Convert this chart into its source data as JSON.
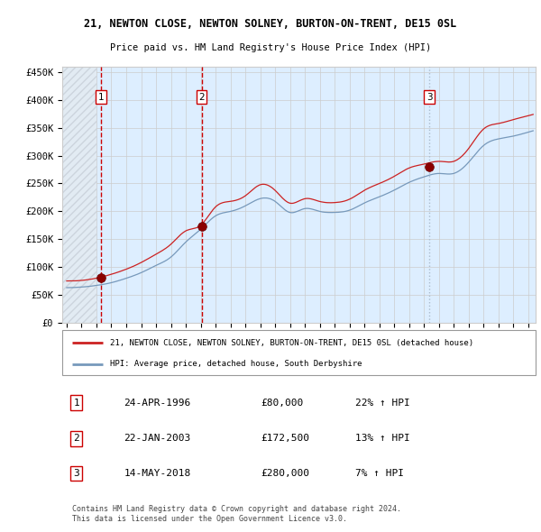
{
  "title_line1": "21, NEWTON CLOSE, NEWTON SOLNEY, BURTON-ON-TRENT, DE15 0SL",
  "title_line2": "Price paid vs. HM Land Registry's House Price Index (HPI)",
  "ylim": [
    0,
    460000
  ],
  "yticks": [
    0,
    50000,
    100000,
    150000,
    200000,
    250000,
    300000,
    350000,
    400000,
    450000
  ],
  "ytick_labels": [
    "£0",
    "£50K",
    "£100K",
    "£150K",
    "£200K",
    "£250K",
    "£300K",
    "£350K",
    "£400K",
    "£450K"
  ],
  "xlim_start": 1993.7,
  "xlim_end": 2025.5,
  "sale_dates": [
    1996.3,
    2003.06,
    2018.37
  ],
  "sale_prices": [
    80000,
    172500,
    280000
  ],
  "sale_labels": [
    "1",
    "2",
    "3"
  ],
  "vline_colors": [
    "#cc0000",
    "#cc0000",
    "#aabbcc"
  ],
  "vline_styles": [
    "--",
    "--",
    ":"
  ],
  "sale_marker_color": "#8b0000",
  "hpi_line_color": "#7799bb",
  "price_line_color": "#cc2222",
  "background_color": "#ffffff",
  "plot_bg_color": "#ddeeff",
  "hatch_color": "#aaaaaa",
  "grid_color": "#cccccc",
  "legend_line1": "21, NEWTON CLOSE, NEWTON SOLNEY, BURTON-ON-TRENT, DE15 0SL (detached house)",
  "legend_line2": "HPI: Average price, detached house, South Derbyshire",
  "table_rows": [
    [
      "1",
      "24-APR-1996",
      "£80,000",
      "22% ↑ HPI"
    ],
    [
      "2",
      "22-JAN-2003",
      "£172,500",
      "13% ↑ HPI"
    ],
    [
      "3",
      "14-MAY-2018",
      "£280,000",
      "7% ↑ HPI"
    ]
  ],
  "footer": "Contains HM Land Registry data © Crown copyright and database right 2024.\nThis data is licensed under the Open Government Licence v3.0."
}
